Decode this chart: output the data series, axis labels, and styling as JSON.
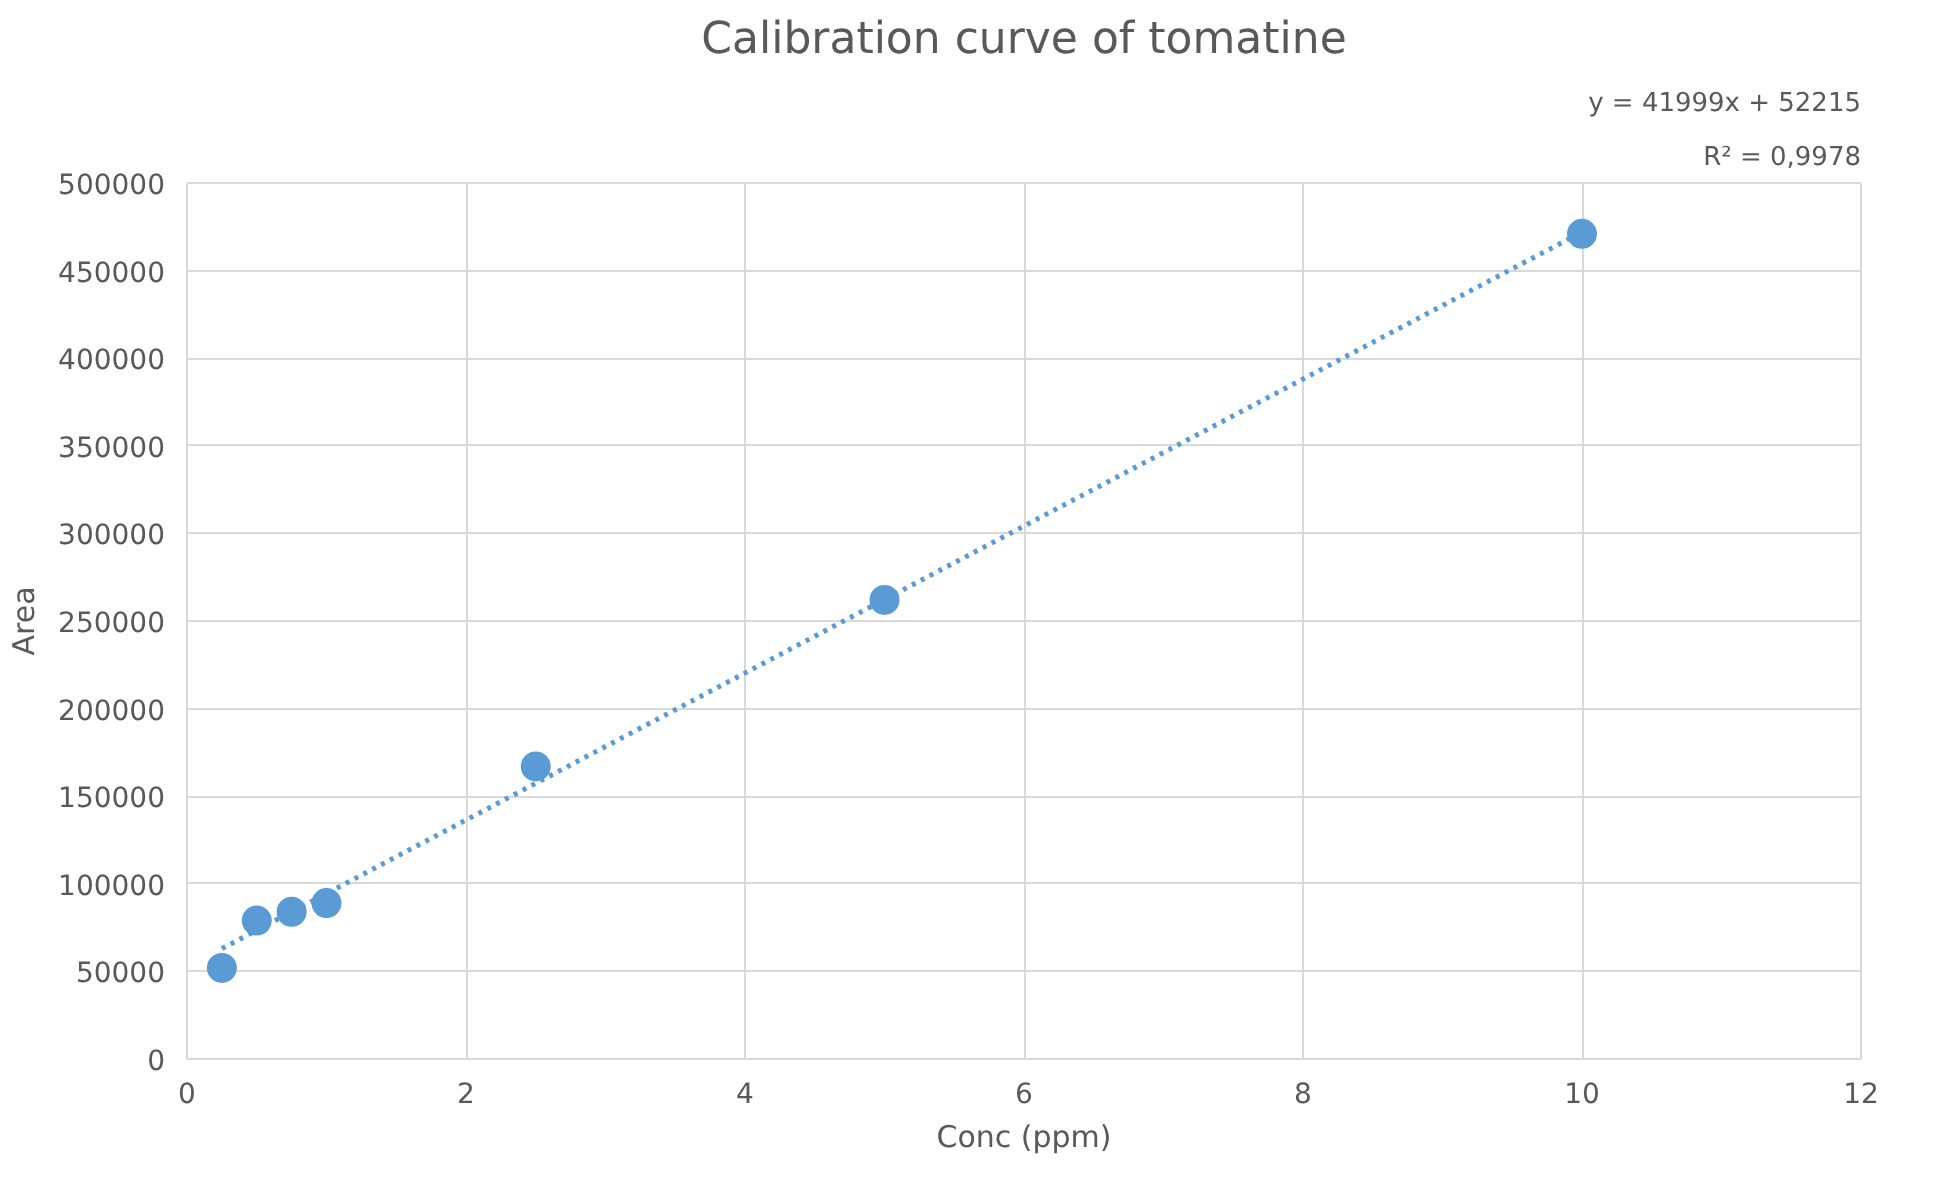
{
  "chart_data": {
    "type": "scatter",
    "title": "Calibration curve of tomatine",
    "xlabel": "Conc (ppm)",
    "ylabel": "Area",
    "annotations": [
      "y = 41999x + 52215",
      "R² = 0,9978"
    ],
    "x": [
      0.25,
      0.5,
      0.75,
      1,
      2.5,
      5,
      10
    ],
    "series": [
      {
        "color": "#5b9bd5",
        "marker": "circle",
        "values": [
          52000,
          79000,
          84000,
          89000,
          167000,
          262000,
          471000
        ]
      },
      {
        "type": "line",
        "color": "#5b9bd5",
        "line_style": "dotted",
        "marker": "none",
        "x": [
          0.25,
          10
        ],
        "values": [
          63000,
          472000
        ]
      }
    ],
    "xlim": [
      0,
      12
    ],
    "xticks": [
      0,
      2,
      4,
      6,
      8,
      10,
      12
    ],
    "ylim": [
      0,
      500000
    ],
    "yticks": [
      0,
      50000,
      100000,
      150000,
      200000,
      250000,
      300000,
      350000,
      400000,
      450000,
      500000
    ],
    "grid": true
  }
}
